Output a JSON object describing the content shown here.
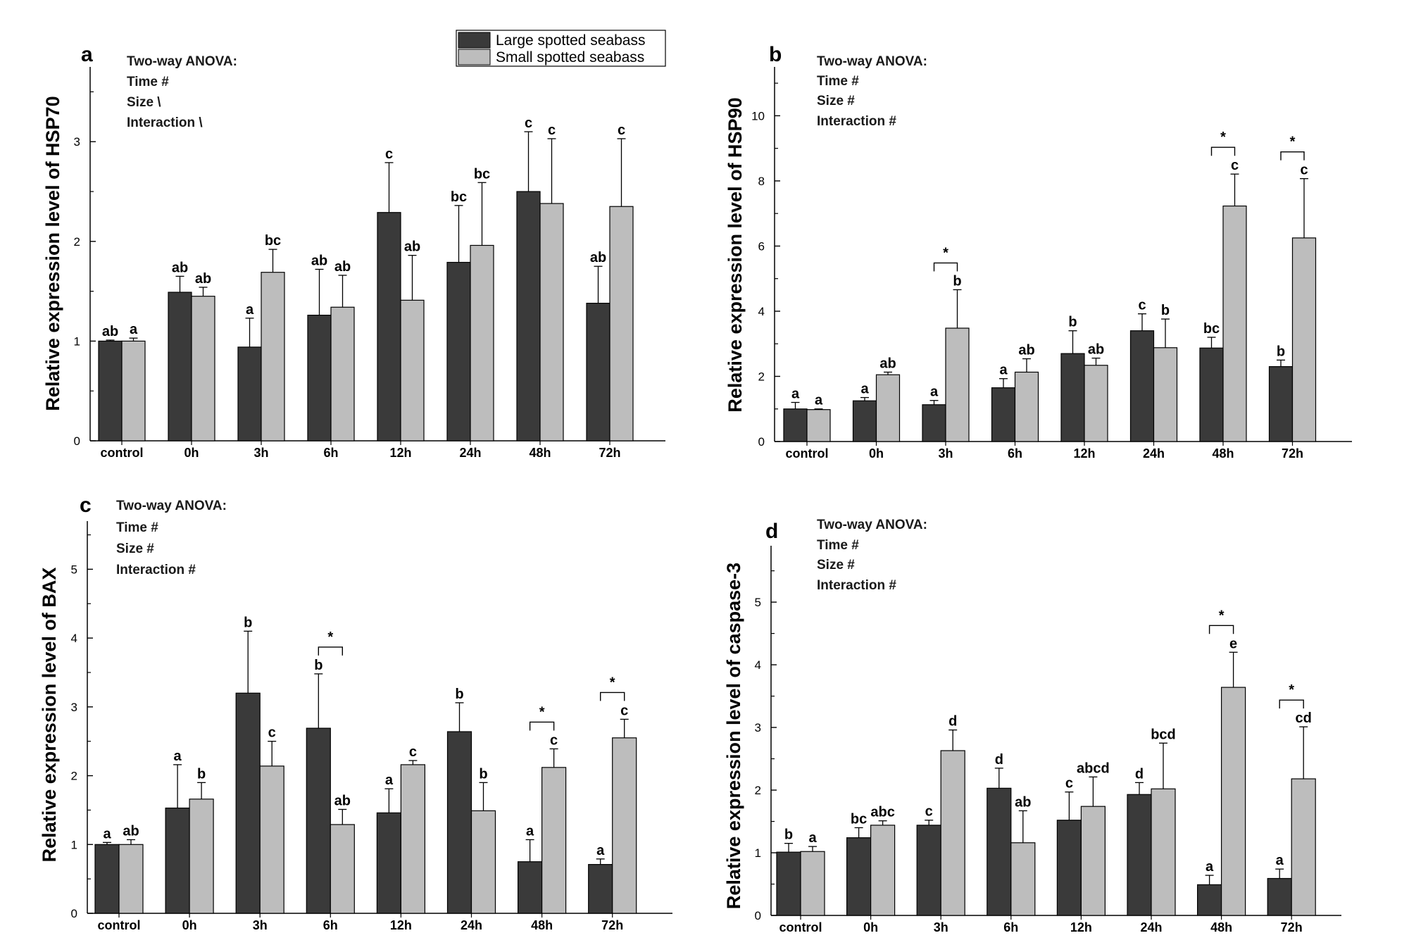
{
  "legend": {
    "items": [
      {
        "label": "Large spotted seabass",
        "color": "#3a3a3a"
      },
      {
        "label": "Small spotted seabass",
        "color": "#bdbdbd"
      }
    ]
  },
  "chart_data": [
    {
      "type": "bar",
      "panel": "a",
      "ylabel": "Relative expression level of HSP70",
      "categories": [
        "control",
        "0h",
        "3h",
        "6h",
        "12h",
        "24h",
        "48h",
        "72h"
      ],
      "ylim": [
        0,
        3.75
      ],
      "yticks": [
        0,
        1,
        2,
        3
      ],
      "anova": [
        "Two-way ANOVA:",
        "Time #",
        "Size \\",
        "Interaction \\"
      ],
      "series": [
        {
          "name": "Large spotted seabass",
          "values": [
            1.0,
            1.49,
            0.94,
            1.26,
            2.29,
            1.79,
            2.5,
            1.38
          ],
          "errors": [
            0.01,
            0.16,
            0.29,
            0.46,
            0.5,
            0.57,
            0.6,
            0.37
          ],
          "letters": [
            "ab",
            "ab",
            "a",
            "ab",
            "c",
            "bc",
            "c",
            "ab"
          ]
        },
        {
          "name": "Small spotted seabass",
          "values": [
            1.0,
            1.45,
            1.69,
            1.34,
            1.41,
            1.96,
            2.38,
            2.35
          ],
          "errors": [
            0.03,
            0.09,
            0.23,
            0.32,
            0.45,
            0.63,
            0.65,
            0.68
          ],
          "letters": [
            "a",
            "ab",
            "bc",
            "ab",
            "ab",
            "bc",
            "c",
            "c"
          ]
        }
      ],
      "stars": []
    },
    {
      "type": "bar",
      "panel": "b",
      "ylabel": "Relative expression level of HSP90",
      "categories": [
        "control",
        "0h",
        "3h",
        "6h",
        "12h",
        "24h",
        "48h",
        "72h"
      ],
      "ylim": [
        0,
        11.5
      ],
      "yticks": [
        0,
        2,
        4,
        6,
        8,
        10
      ],
      "anova": [
        "Two-way ANOVA:",
        "Time #",
        "Size #",
        "Interaction #"
      ],
      "series": [
        {
          "name": "Large spotted seabass",
          "values": [
            1.0,
            1.25,
            1.13,
            1.65,
            2.7,
            3.4,
            2.87,
            2.3
          ],
          "errors": [
            0.2,
            0.1,
            0.13,
            0.28,
            0.7,
            0.52,
            0.33,
            0.2
          ],
          "letters": [
            "a",
            "a",
            "a",
            "a",
            "b",
            "c",
            "bc",
            "b"
          ]
        },
        {
          "name": "Small spotted seabass",
          "values": [
            0.98,
            2.05,
            3.48,
            2.13,
            2.34,
            2.88,
            7.23,
            6.25
          ],
          "errors": [
            0.02,
            0.08,
            1.18,
            0.41,
            0.22,
            0.88,
            0.98,
            1.82
          ],
          "letters": [
            "a",
            "ab",
            "b",
            "ab",
            "ab",
            "b",
            "c",
            "c"
          ]
        }
      ],
      "stars": [
        {
          "category": "3h",
          "label": "*"
        },
        {
          "category": "48h",
          "label": "*"
        },
        {
          "category": "72h",
          "label": "*"
        }
      ]
    },
    {
      "type": "bar",
      "panel": "c",
      "ylabel": "Relative expression level of BAX",
      "categories": [
        "control",
        "0h",
        "3h",
        "6h",
        "12h",
        "24h",
        "48h",
        "72h"
      ],
      "ylim": [
        0,
        5.7
      ],
      "yticks": [
        0,
        1,
        2,
        3,
        4,
        5
      ],
      "anova": [
        "Two-way ANOVA:",
        "Time #",
        "Size #",
        "Interaction #"
      ],
      "series": [
        {
          "name": "Large spotted seabass",
          "values": [
            1.0,
            1.53,
            3.2,
            2.69,
            1.46,
            2.64,
            0.75,
            0.71
          ],
          "errors": [
            0.03,
            0.63,
            0.9,
            0.79,
            0.35,
            0.42,
            0.32,
            0.08
          ],
          "letters": [
            "a",
            "a",
            "b",
            "b",
            "a",
            "b",
            "a",
            "a"
          ]
        },
        {
          "name": "Small spotted seabass",
          "values": [
            1.0,
            1.66,
            2.14,
            1.29,
            2.16,
            1.49,
            2.12,
            2.55
          ],
          "errors": [
            0.07,
            0.24,
            0.36,
            0.22,
            0.06,
            0.41,
            0.27,
            0.27
          ],
          "letters": [
            "ab",
            "b",
            "c",
            "ab",
            "c",
            "b",
            "c",
            "c"
          ]
        }
      ],
      "stars": [
        {
          "category": "6h",
          "label": "*"
        },
        {
          "category": "48h",
          "label": "*"
        },
        {
          "category": "72h",
          "label": "*"
        }
      ]
    },
    {
      "type": "bar",
      "panel": "d",
      "ylabel": "Relative expression level of caspase-3",
      "categories": [
        "control",
        "0h",
        "3h",
        "6h",
        "12h",
        "24h",
        "48h",
        "72h"
      ],
      "ylim": [
        0,
        5.9
      ],
      "yticks": [
        0,
        1,
        2,
        3,
        4,
        5
      ],
      "anova": [
        "Two-way ANOVA:",
        "Time #",
        "Size #",
        "Interaction #"
      ],
      "series": [
        {
          "name": "Large spotted seabass",
          "values": [
            1.01,
            1.24,
            1.44,
            2.03,
            1.52,
            1.93,
            0.49,
            0.59
          ],
          "errors": [
            0.14,
            0.16,
            0.08,
            0.32,
            0.45,
            0.19,
            0.15,
            0.15
          ],
          "letters": [
            "b",
            "bc",
            "c",
            "d",
            "c",
            "d",
            "a",
            "a"
          ]
        },
        {
          "name": "Small spotted seabass",
          "values": [
            1.02,
            1.44,
            2.63,
            1.16,
            1.74,
            2.02,
            3.64,
            2.18
          ],
          "errors": [
            0.08,
            0.07,
            0.33,
            0.51,
            0.47,
            0.73,
            0.56,
            0.83
          ],
          "letters": [
            "a",
            "abc",
            "d",
            "ab",
            "abcd",
            "bcd",
            "e",
            "cd"
          ]
        }
      ],
      "stars": [
        {
          "category": "48h",
          "label": "*"
        },
        {
          "category": "72h",
          "label": "*"
        }
      ]
    }
  ]
}
